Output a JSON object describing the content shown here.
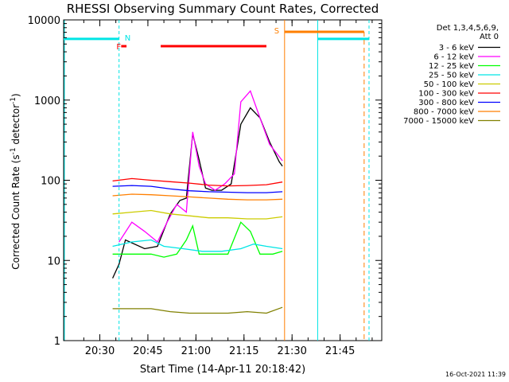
{
  "chart_data": {
    "type": "line",
    "title": "RHESSI Observing Summary Count Rates, Corrected",
    "xlabel": "Start Time (14-Apr-11 20:18:42)",
    "ylabel_main": "Corrected Count Rate (s",
    "ylabel_sup1": "-1",
    "ylabel_mid": " detector",
    "ylabel_sup2": "-1",
    "ylabel_end": ")",
    "yscale": "log",
    "x_range": [
      "20:18:42",
      "21:58:00"
    ],
    "ylim": [
      1,
      10000
    ],
    "x_ticks": [
      "20:30",
      "20:45",
      "21:00",
      "21:15",
      "21:30",
      "21:45"
    ],
    "y_ticks": [
      "1",
      "10",
      "100",
      "1000",
      "10000"
    ],
    "legend_header": [
      "Det 1,3,4,5,6,9,",
      "Att 0"
    ],
    "legend_placement": "right",
    "footer_timestamp": "16-Oct-2021 11:39",
    "flags": {
      "N": {
        "label": "N",
        "color": "#00e5e5"
      },
      "F": {
        "label": "F",
        "color": "#ff0000"
      },
      "S": {
        "label": "S",
        "color": "#ff7f00"
      }
    },
    "series": [
      {
        "name": "3 - 6 keV",
        "color": "#000000",
        "points": [
          [
            "20:34",
            6
          ],
          [
            "20:36",
            9
          ],
          [
            "20:38",
            18
          ],
          [
            "20:44",
            14
          ],
          [
            "20:48",
            15
          ],
          [
            "20:52",
            38
          ],
          [
            "20:55",
            56
          ],
          [
            "20:57",
            60
          ],
          [
            "20:59",
            380
          ],
          [
            "21:01",
            180
          ],
          [
            "21:03",
            80
          ],
          [
            "21:05",
            75
          ],
          [
            "21:08",
            75
          ],
          [
            "21:11",
            90
          ],
          [
            "21:14",
            500
          ],
          [
            "21:17",
            800
          ],
          [
            "21:20",
            600
          ],
          [
            "21:23",
            300
          ],
          [
            "21:26",
            170
          ],
          [
            "21:27",
            150
          ]
        ]
      },
      {
        "name": "6 - 12 keV",
        "color": "#ff00ff",
        "points": [
          [
            "20:36",
            17
          ],
          [
            "20:40",
            30
          ],
          [
            "20:44",
            23
          ],
          [
            "20:48",
            17
          ],
          [
            "20:51",
            30
          ],
          [
            "20:54",
            50
          ],
          [
            "20:57",
            40
          ],
          [
            "20:59",
            400
          ],
          [
            "21:01",
            150
          ],
          [
            "21:03",
            90
          ],
          [
            "21:06",
            75
          ],
          [
            "21:09",
            90
          ],
          [
            "21:12",
            120
          ],
          [
            "21:14",
            950
          ],
          [
            "21:17",
            1300
          ],
          [
            "21:20",
            600
          ],
          [
            "21:23",
            280
          ],
          [
            "21:27",
            175
          ]
        ]
      },
      {
        "name": "12 - 25 keV",
        "color": "#00ff00",
        "points": [
          [
            "20:34",
            12
          ],
          [
            "20:40",
            12
          ],
          [
            "20:46",
            12
          ],
          [
            "20:50",
            11
          ],
          [
            "20:54",
            12
          ],
          [
            "20:57",
            18
          ],
          [
            "20:59",
            27
          ],
          [
            "21:01",
            12
          ],
          [
            "21:05",
            12
          ],
          [
            "21:10",
            12
          ],
          [
            "21:14",
            30
          ],
          [
            "21:17",
            23
          ],
          [
            "21:20",
            12
          ],
          [
            "21:24",
            12
          ],
          [
            "21:27",
            13
          ]
        ]
      },
      {
        "name": "25 - 50 keV",
        "color": "#00e5e5",
        "points": [
          [
            "20:34",
            15
          ],
          [
            "20:40",
            17
          ],
          [
            "20:46",
            18
          ],
          [
            "20:50",
            15
          ],
          [
            "20:56",
            14
          ],
          [
            "21:02",
            13
          ],
          [
            "21:08",
            13
          ],
          [
            "21:14",
            14
          ],
          [
            "21:18",
            16
          ],
          [
            "21:22",
            15
          ],
          [
            "21:27",
            14
          ]
        ]
      },
      {
        "name": "50 - 100 keV",
        "color": "#cccc00",
        "points": [
          [
            "20:34",
            38
          ],
          [
            "20:40",
            40
          ],
          [
            "20:46",
            42
          ],
          [
            "20:52",
            38
          ],
          [
            "20:58",
            36
          ],
          [
            "21:04",
            34
          ],
          [
            "21:10",
            34
          ],
          [
            "21:16",
            33
          ],
          [
            "21:22",
            33
          ],
          [
            "21:27",
            35
          ]
        ]
      },
      {
        "name": "100 - 300 keV",
        "color": "#ff0000",
        "points": [
          [
            "20:34",
            98
          ],
          [
            "20:40",
            105
          ],
          [
            "20:46",
            100
          ],
          [
            "20:52",
            96
          ],
          [
            "20:58",
            92
          ],
          [
            "21:04",
            87
          ],
          [
            "21:10",
            85
          ],
          [
            "21:16",
            86
          ],
          [
            "21:22",
            88
          ],
          [
            "21:27",
            95
          ]
        ]
      },
      {
        "name": "300 - 800 keV",
        "color": "#0000ff",
        "points": [
          [
            "20:34",
            84
          ],
          [
            "20:40",
            86
          ],
          [
            "20:46",
            84
          ],
          [
            "20:52",
            78
          ],
          [
            "20:58",
            74
          ],
          [
            "21:04",
            72
          ],
          [
            "21:10",
            71
          ],
          [
            "21:16",
            70
          ],
          [
            "21:22",
            70
          ],
          [
            "21:27",
            72
          ]
        ]
      },
      {
        "name": "800 - 7000 keV",
        "color": "#ff7f00",
        "points": [
          [
            "20:34",
            64
          ],
          [
            "20:40",
            67
          ],
          [
            "20:46",
            66
          ],
          [
            "20:52",
            64
          ],
          [
            "20:58",
            62
          ],
          [
            "21:04",
            60
          ],
          [
            "21:10",
            58
          ],
          [
            "21:16",
            57
          ],
          [
            "21:22",
            57
          ],
          [
            "21:27",
            58
          ]
        ]
      },
      {
        "name": "7000 - 15000 keV",
        "color": "#808000",
        "points": [
          [
            "20:34",
            2.5
          ],
          [
            "20:40",
            2.5
          ],
          [
            "20:46",
            2.5
          ],
          [
            "20:52",
            2.3
          ],
          [
            "20:58",
            2.2
          ],
          [
            "21:04",
            2.2
          ],
          [
            "21:10",
            2.2
          ],
          [
            "21:16",
            2.3
          ],
          [
            "21:22",
            2.2
          ],
          [
            "21:27",
            2.6
          ]
        ]
      }
    ]
  }
}
